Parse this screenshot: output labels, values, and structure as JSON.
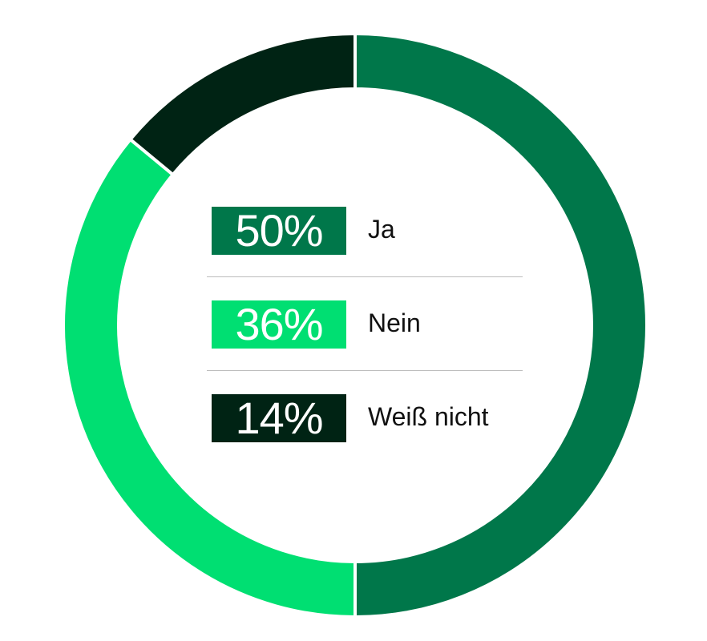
{
  "chart_data": {
    "type": "pie",
    "style": "donut",
    "slices": [
      {
        "label": "Ja",
        "value": 50,
        "display": "50%",
        "color": "#00774a"
      },
      {
        "label": "Nein",
        "value": 36,
        "display": "36%",
        "color": "#00df72"
      },
      {
        "label": "Weiß nicht",
        "value": 14,
        "display": "14%",
        "color": "#002314"
      }
    ]
  }
}
